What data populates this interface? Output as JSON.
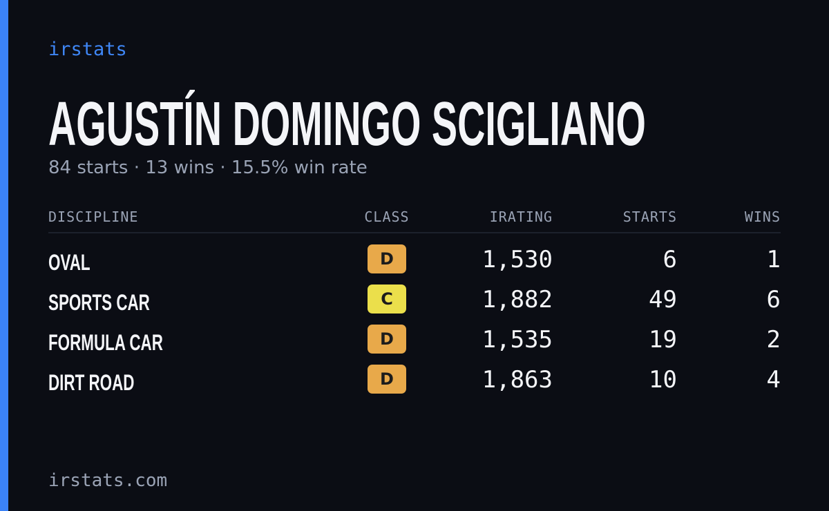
{
  "header": {
    "brand": "irstats",
    "title": "AGUSTÍN DOMINGO SCIGLIANO",
    "subtitle": "84 starts · 13 wins · 15.5% win rate"
  },
  "table": {
    "columns": [
      "DISCIPLINE",
      "CLASS",
      "IRATING",
      "STARTS",
      "WINS"
    ],
    "rows": [
      {
        "discipline": "OVAL",
        "class": "D",
        "class_color": "#e8a94a",
        "irating": "1,530",
        "starts": 6,
        "wins": 1
      },
      {
        "discipline": "SPORTS CAR",
        "class": "C",
        "class_color": "#ebdf4b",
        "irating": "1,882",
        "starts": 49,
        "wins": 6
      },
      {
        "discipline": "FORMULA CAR",
        "class": "D",
        "class_color": "#e8a94a",
        "irating": "1,535",
        "starts": 19,
        "wins": 2
      },
      {
        "discipline": "DIRT ROAD",
        "class": "D",
        "class_color": "#e8a94a",
        "irating": "1,863",
        "starts": 10,
        "wins": 4
      }
    ]
  },
  "footer": {
    "site": "irstats.com"
  }
}
